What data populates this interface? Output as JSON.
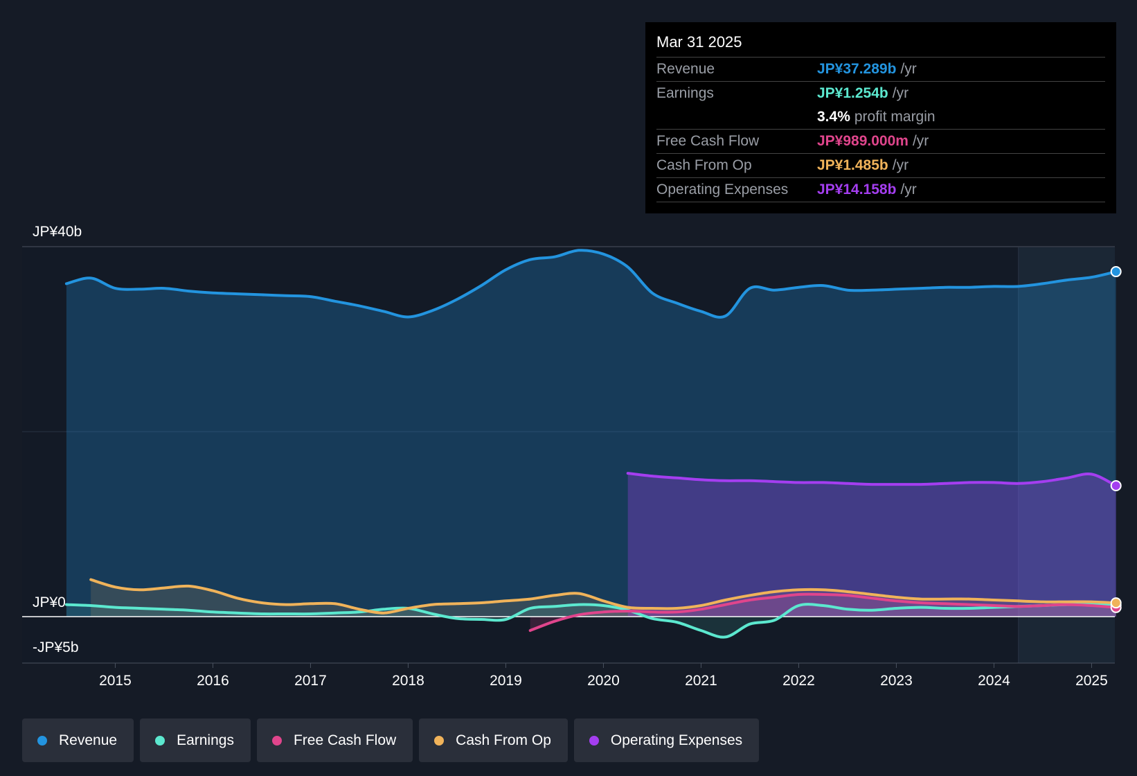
{
  "tooltip": {
    "date": "Mar 31 2025",
    "rows": [
      {
        "label": "Revenue",
        "value": "JP¥37.289b",
        "unit": "/yr",
        "color": "#2394df"
      },
      {
        "label": "Earnings",
        "value": "JP¥1.254b",
        "unit": "/yr",
        "color": "#5ce8cf"
      },
      {
        "label": "",
        "value": "3.4%",
        "unit": "profit margin",
        "color": "#ffffff"
      },
      {
        "label": "Free Cash Flow",
        "value": "JP¥989.000m",
        "unit": "/yr",
        "color": "#e0458c"
      },
      {
        "label": "Cash From Op",
        "value": "JP¥1.485b",
        "unit": "/yr",
        "color": "#f0b35a"
      },
      {
        "label": "Operating Expenses",
        "value": "JP¥14.158b",
        "unit": "/yr",
        "color": "#a43ef0"
      }
    ]
  },
  "legend": [
    {
      "label": "Revenue",
      "color": "#2394df"
    },
    {
      "label": "Earnings",
      "color": "#5ce8cf"
    },
    {
      "label": "Free Cash Flow",
      "color": "#e0458c"
    },
    {
      "label": "Cash From Op",
      "color": "#f0b35a"
    },
    {
      "label": "Operating Expenses",
      "color": "#a43ef0"
    }
  ],
  "chart_data": {
    "type": "line",
    "title": "",
    "xlabel": "",
    "ylabel": "",
    "xlim": [
      2014.0,
      2025.25
    ],
    "ylim": [
      -5,
      40
    ],
    "y_tick_labels": [
      {
        "label": "JP¥40b",
        "value": 40
      },
      {
        "label": "JP¥0",
        "value": 0
      },
      {
        "label": "-JP¥5b",
        "value": -5
      }
    ],
    "x_ticks": [
      2015,
      2016,
      2017,
      2018,
      2019,
      2020,
      2021,
      2022,
      2023,
      2024,
      2025
    ],
    "x_tick_labels": [
      "2015",
      "2016",
      "2017",
      "2018",
      "2019",
      "2020",
      "2021",
      "2022",
      "2023",
      "2024",
      "2025"
    ],
    "forecast_start": 2024.25,
    "series": [
      {
        "name": "Revenue",
        "color": "#2394df",
        "fill": true,
        "x": [
          2014.5,
          2014.75,
          2015.0,
          2015.25,
          2015.5,
          2015.75,
          2016.0,
          2016.25,
          2016.5,
          2016.75,
          2017.0,
          2017.25,
          2017.5,
          2017.75,
          2018.0,
          2018.25,
          2018.5,
          2018.75,
          2019.0,
          2019.25,
          2019.5,
          2019.75,
          2020.0,
          2020.25,
          2020.5,
          2020.75,
          2021.0,
          2021.25,
          2021.5,
          2021.75,
          2022.0,
          2022.25,
          2022.5,
          2022.75,
          2023.0,
          2023.25,
          2023.5,
          2023.75,
          2024.0,
          2024.25,
          2024.5,
          2024.75,
          2025.0,
          2025.25
        ],
        "values": [
          36.0,
          36.6,
          35.5,
          35.4,
          35.5,
          35.2,
          35.0,
          34.9,
          34.8,
          34.7,
          34.6,
          34.1,
          33.6,
          33.0,
          32.4,
          33.1,
          34.3,
          35.8,
          37.5,
          38.6,
          38.9,
          39.6,
          39.2,
          37.8,
          35.0,
          33.9,
          33.0,
          32.5,
          35.5,
          35.3,
          35.6,
          35.8,
          35.3,
          35.3,
          35.4,
          35.5,
          35.6,
          35.6,
          35.7,
          35.7,
          36.0,
          36.4,
          36.7,
          37.3
        ]
      },
      {
        "name": "Earnings",
        "color": "#5ce8cf",
        "fill": true,
        "x": [
          2014.5,
          2014.75,
          2015.0,
          2015.25,
          2015.5,
          2015.75,
          2016.0,
          2016.25,
          2016.5,
          2016.75,
          2017.0,
          2017.25,
          2017.5,
          2017.75,
          2018.0,
          2018.25,
          2018.5,
          2018.75,
          2019.0,
          2019.25,
          2019.5,
          2019.75,
          2020.0,
          2020.25,
          2020.5,
          2020.75,
          2021.0,
          2021.25,
          2021.5,
          2021.75,
          2022.0,
          2022.25,
          2022.5,
          2022.75,
          2023.0,
          2023.25,
          2023.5,
          2023.75,
          2024.0,
          2024.25,
          2024.5,
          2024.75,
          2025.0,
          2025.25
        ],
        "values": [
          1.3,
          1.2,
          1.0,
          0.9,
          0.8,
          0.7,
          0.5,
          0.4,
          0.3,
          0.3,
          0.3,
          0.4,
          0.5,
          0.8,
          0.9,
          0.3,
          -0.2,
          -0.3,
          -0.3,
          0.9,
          1.1,
          1.3,
          1.2,
          0.7,
          -0.2,
          -0.6,
          -1.5,
          -2.2,
          -0.8,
          -0.4,
          1.2,
          1.2,
          0.8,
          0.7,
          0.9,
          1.0,
          0.9,
          0.9,
          1.0,
          1.1,
          1.2,
          1.3,
          1.3,
          1.25
        ]
      },
      {
        "name": "Free Cash Flow",
        "color": "#e0458c",
        "fill": true,
        "x": [
          2019.25,
          2019.5,
          2019.75,
          2020.0,
          2020.25,
          2020.5,
          2020.75,
          2021.0,
          2021.25,
          2021.5,
          2021.75,
          2022.0,
          2022.25,
          2022.5,
          2022.75,
          2023.0,
          2023.25,
          2023.5,
          2023.75,
          2024.0,
          2024.25,
          2024.5,
          2024.75,
          2025.0,
          2025.25
        ],
        "values": [
          -1.5,
          -0.5,
          0.2,
          0.5,
          0.6,
          0.5,
          0.5,
          0.8,
          1.3,
          1.8,
          2.1,
          2.4,
          2.4,
          2.3,
          2.0,
          1.7,
          1.5,
          1.4,
          1.3,
          1.2,
          1.1,
          1.2,
          1.3,
          1.2,
          0.99
        ]
      },
      {
        "name": "Cash From Op",
        "color": "#f0b35a",
        "fill": true,
        "x": [
          2014.75,
          2015.0,
          2015.25,
          2015.5,
          2015.75,
          2016.0,
          2016.25,
          2016.5,
          2016.75,
          2017.0,
          2017.25,
          2017.5,
          2017.75,
          2018.0,
          2018.25,
          2018.5,
          2018.75,
          2019.0,
          2019.25,
          2019.5,
          2019.75,
          2020.0,
          2020.25,
          2020.5,
          2020.75,
          2021.0,
          2021.25,
          2021.5,
          2021.75,
          2022.0,
          2022.25,
          2022.5,
          2022.75,
          2023.0,
          2023.25,
          2023.5,
          2023.75,
          2024.0,
          2024.25,
          2024.5,
          2024.75,
          2025.0,
          2025.25
        ],
        "values": [
          4.0,
          3.2,
          2.9,
          3.1,
          3.3,
          2.8,
          2.0,
          1.5,
          1.3,
          1.4,
          1.4,
          0.8,
          0.4,
          0.9,
          1.3,
          1.4,
          1.5,
          1.7,
          1.9,
          2.3,
          2.5,
          1.7,
          1.0,
          0.9,
          0.9,
          1.2,
          1.8,
          2.3,
          2.7,
          2.9,
          2.9,
          2.7,
          2.4,
          2.1,
          1.9,
          1.9,
          1.9,
          1.8,
          1.7,
          1.6,
          1.6,
          1.6,
          1.485
        ]
      },
      {
        "name": "Operating Expenses",
        "color": "#a43ef0",
        "fill": true,
        "x": [
          2020.25,
          2020.5,
          2020.75,
          2021.0,
          2021.25,
          2021.5,
          2021.75,
          2022.0,
          2022.25,
          2022.5,
          2022.75,
          2023.0,
          2023.25,
          2023.5,
          2023.75,
          2024.0,
          2024.25,
          2024.5,
          2024.75,
          2025.0,
          2025.25
        ],
        "values": [
          15.5,
          15.2,
          15.0,
          14.8,
          14.7,
          14.7,
          14.6,
          14.5,
          14.5,
          14.4,
          14.3,
          14.3,
          14.3,
          14.4,
          14.5,
          14.5,
          14.4,
          14.6,
          15.0,
          15.4,
          14.158
        ]
      }
    ]
  }
}
